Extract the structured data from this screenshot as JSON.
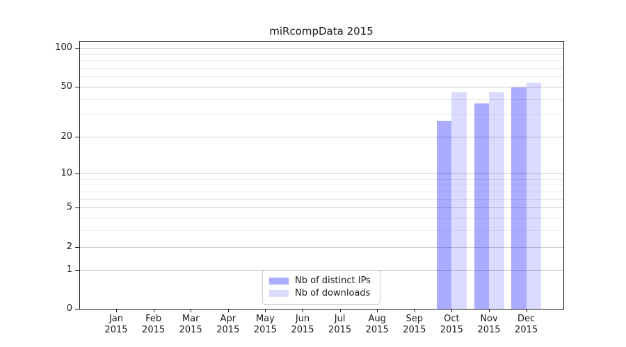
{
  "title": "miRcompData 2015",
  "chart_data": {
    "type": "bar",
    "title": "miRcompData 2015",
    "categories": [
      "Jan",
      "Feb",
      "Mar",
      "Apr",
      "May",
      "Jun",
      "Jul",
      "Aug",
      "Sep",
      "Oct",
      "Nov",
      "Dec"
    ],
    "category_year": "2015",
    "series": [
      {
        "name": "Nb of distinct IPs",
        "color": "rgba(0,0,255,0.33)",
        "values": [
          0,
          0,
          0,
          0,
          0,
          0,
          0,
          0,
          0,
          27,
          37,
          49
        ]
      },
      {
        "name": "Nb of downloads",
        "color": "rgba(0,0,255,0.14)",
        "values": [
          0,
          0,
          0,
          0,
          0,
          0,
          0,
          0,
          0,
          45,
          45,
          54
        ]
      }
    ],
    "y_axis": {
      "scale": "log1p",
      "ticks_major": [
        0,
        1,
        2,
        5,
        10,
        20,
        50,
        100
      ],
      "ticks_minor": [
        3,
        4,
        6,
        7,
        8,
        9,
        30,
        40,
        60,
        70,
        80,
        90
      ],
      "ymin": 0,
      "ymax": 112
    },
    "grid": "on",
    "legend_position": "bottom-center",
    "colors": {
      "axis": "#1a1a1a",
      "grid_major": "#c9c9c9",
      "grid_minor": "#eaeaea",
      "background": "#ffffff"
    }
  }
}
